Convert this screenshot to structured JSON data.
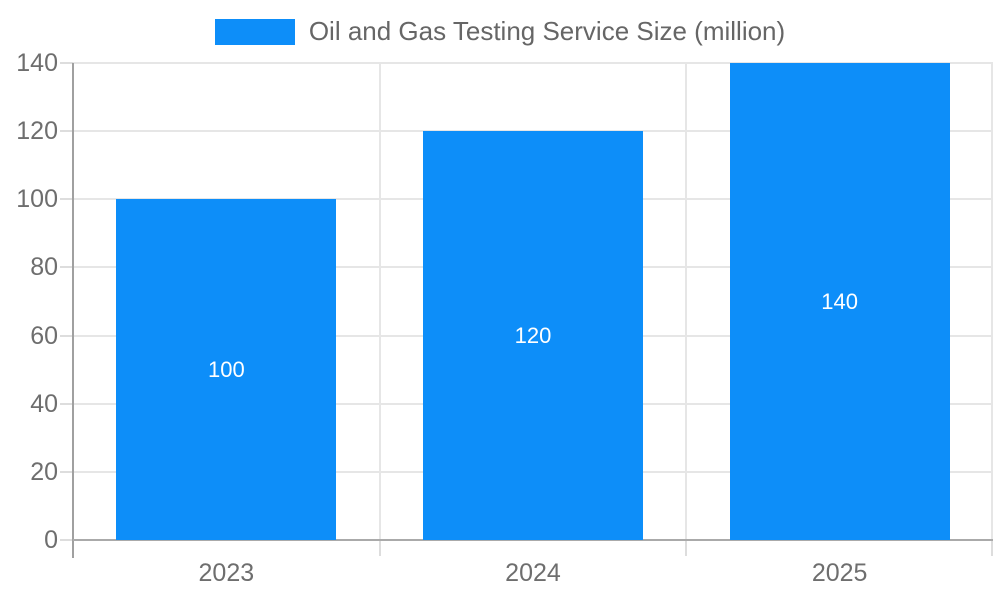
{
  "chart_data": {
    "type": "bar",
    "categories": [
      "2023",
      "2024",
      "2025"
    ],
    "values": [
      100,
      120,
      140
    ],
    "series": [
      {
        "name": "Oil and Gas Testing Service Size (million)",
        "values": [
          100,
          120,
          140
        ]
      }
    ],
    "series_name": "Oil and Gas Testing Service Size (million)",
    "title": "",
    "xlabel": "",
    "ylabel": "",
    "ylim": [
      0,
      140
    ],
    "yticks": [
      0,
      20,
      40,
      60,
      80,
      100,
      120,
      140
    ],
    "grid": true,
    "legend_position": "top-center",
    "bar_color": "#0D8EF9",
    "data_label_color": "#FFFFFF",
    "axis_text_color": "#6E6E6E",
    "gridline_color": "#E6E6E6"
  },
  "legend": {
    "label": "Oil and Gas Testing Service Size (million)"
  }
}
